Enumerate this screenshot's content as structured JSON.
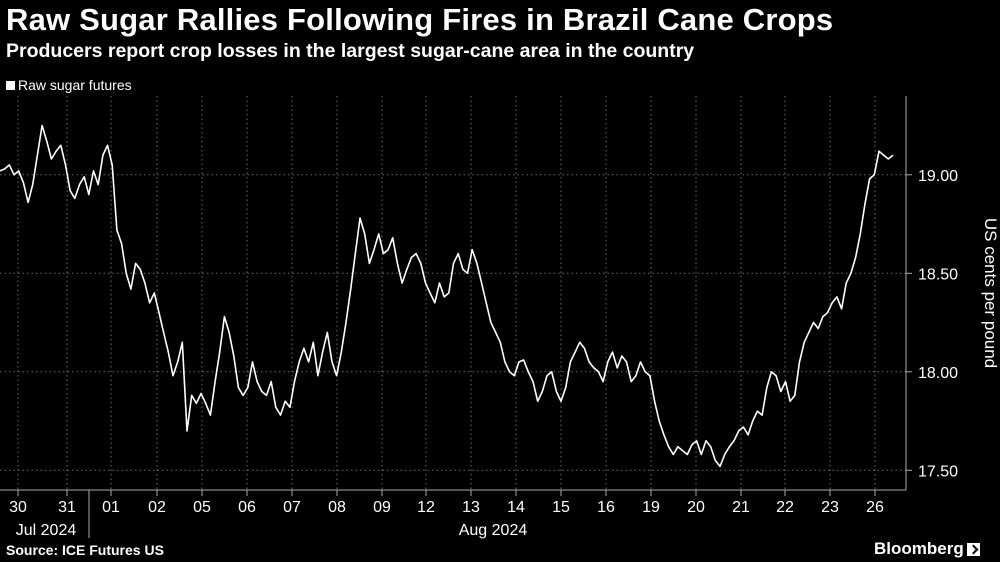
{
  "header": {
    "title": "Raw Sugar Rallies Following Fires in Brazil Cane Crops",
    "subtitle": "Producers report crop losses in the largest sugar-cane area in the country"
  },
  "legend": {
    "label": "Raw sugar futures"
  },
  "footer": {
    "source": "Source: ICE Futures US",
    "brand": "Bloomberg"
  },
  "colors": {
    "background": "#000000",
    "line": "#ffffff",
    "grid": "#6b6b6b"
  },
  "chart_data": {
    "type": "line",
    "title": "Raw Sugar Rallies Following Fires in Brazil Cane Crops",
    "subtitle": "Producers report crop losses in the largest sugar-cane area in the country",
    "ylabel": "US cents per pound",
    "ylim": [
      17.4,
      19.4
    ],
    "yticks": [
      17.5,
      18.0,
      18.5,
      19.0
    ],
    "ytick_labels": [
      "17.50",
      "18.00",
      "18.50",
      "19.00"
    ],
    "xtick_labels": [
      "30",
      "31",
      "01",
      "02",
      "05",
      "06",
      "07",
      "08",
      "09",
      "12",
      "13",
      "14",
      "15",
      "16",
      "19",
      "20",
      "21",
      "22",
      "23",
      "26"
    ],
    "month_labels": [
      "Jul 2024",
      "Aug 2024"
    ],
    "grid": true,
    "legend_position": "top-left",
    "series": [
      {
        "name": "Raw sugar futures",
        "x_start_date": "2024-07-30",
        "trading_days": [
          "2024-07-30",
          "2024-07-31",
          "2024-08-01",
          "2024-08-02",
          "2024-08-05",
          "2024-08-06",
          "2024-08-07",
          "2024-08-08",
          "2024-08-09",
          "2024-08-12",
          "2024-08-13",
          "2024-08-14",
          "2024-08-15",
          "2024-08-16",
          "2024-08-19",
          "2024-08-20",
          "2024-08-21",
          "2024-08-22",
          "2024-08-23",
          "2024-08-26"
        ],
        "values": [
          19.02,
          19.03,
          19.05,
          19.0,
          19.02,
          18.96,
          18.86,
          18.95,
          19.1,
          19.25,
          19.17,
          19.08,
          19.12,
          19.15,
          19.05,
          18.92,
          18.88,
          18.95,
          18.99,
          18.9,
          19.02,
          18.95,
          19.1,
          19.15,
          19.05,
          18.72,
          18.65,
          18.5,
          18.42,
          18.55,
          18.52,
          18.45,
          18.35,
          18.4,
          18.3,
          18.2,
          18.1,
          17.98,
          18.05,
          18.15,
          17.7,
          17.88,
          17.84,
          17.89,
          17.84,
          17.78,
          17.95,
          18.1,
          18.28,
          18.2,
          18.08,
          17.92,
          17.88,
          17.92,
          18.05,
          17.95,
          17.9,
          17.88,
          17.95,
          17.82,
          17.78,
          17.85,
          17.82,
          17.95,
          18.05,
          18.12,
          18.05,
          18.15,
          17.98,
          18.1,
          18.2,
          18.05,
          17.98,
          18.1,
          18.25,
          18.42,
          18.6,
          18.78,
          18.7,
          18.55,
          18.62,
          18.7,
          18.6,
          18.62,
          18.68,
          18.55,
          18.45,
          18.52,
          18.58,
          18.6,
          18.55,
          18.45,
          18.4,
          18.35,
          18.45,
          18.38,
          18.4,
          18.55,
          18.6,
          18.52,
          18.5,
          18.62,
          18.55,
          18.45,
          18.35,
          18.25,
          18.2,
          18.15,
          18.05,
          18.0,
          17.98,
          18.05,
          18.06,
          18.0,
          17.95,
          17.85,
          17.9,
          17.98,
          18.0,
          17.9,
          17.85,
          17.92,
          18.05,
          18.1,
          18.15,
          18.12,
          18.05,
          18.02,
          18.0,
          17.95,
          18.05,
          18.1,
          18.02,
          18.08,
          18.05,
          17.95,
          17.98,
          18.05,
          18.0,
          17.98,
          17.85,
          17.75,
          17.68,
          17.62,
          17.58,
          17.62,
          17.6,
          17.58,
          17.63,
          17.65,
          17.58,
          17.65,
          17.62,
          17.55,
          17.52,
          17.58,
          17.62,
          17.65,
          17.7,
          17.72,
          17.68,
          17.75,
          17.8,
          17.78,
          17.92,
          18.0,
          17.98,
          17.9,
          17.95,
          17.85,
          17.88,
          18.05,
          18.15,
          18.2,
          18.25,
          18.22,
          18.28,
          18.3,
          18.35,
          18.38,
          18.32,
          18.45,
          18.5,
          18.58,
          18.7,
          18.85,
          18.98,
          19.0,
          19.12,
          19.1,
          19.08,
          19.1
        ]
      }
    ]
  }
}
